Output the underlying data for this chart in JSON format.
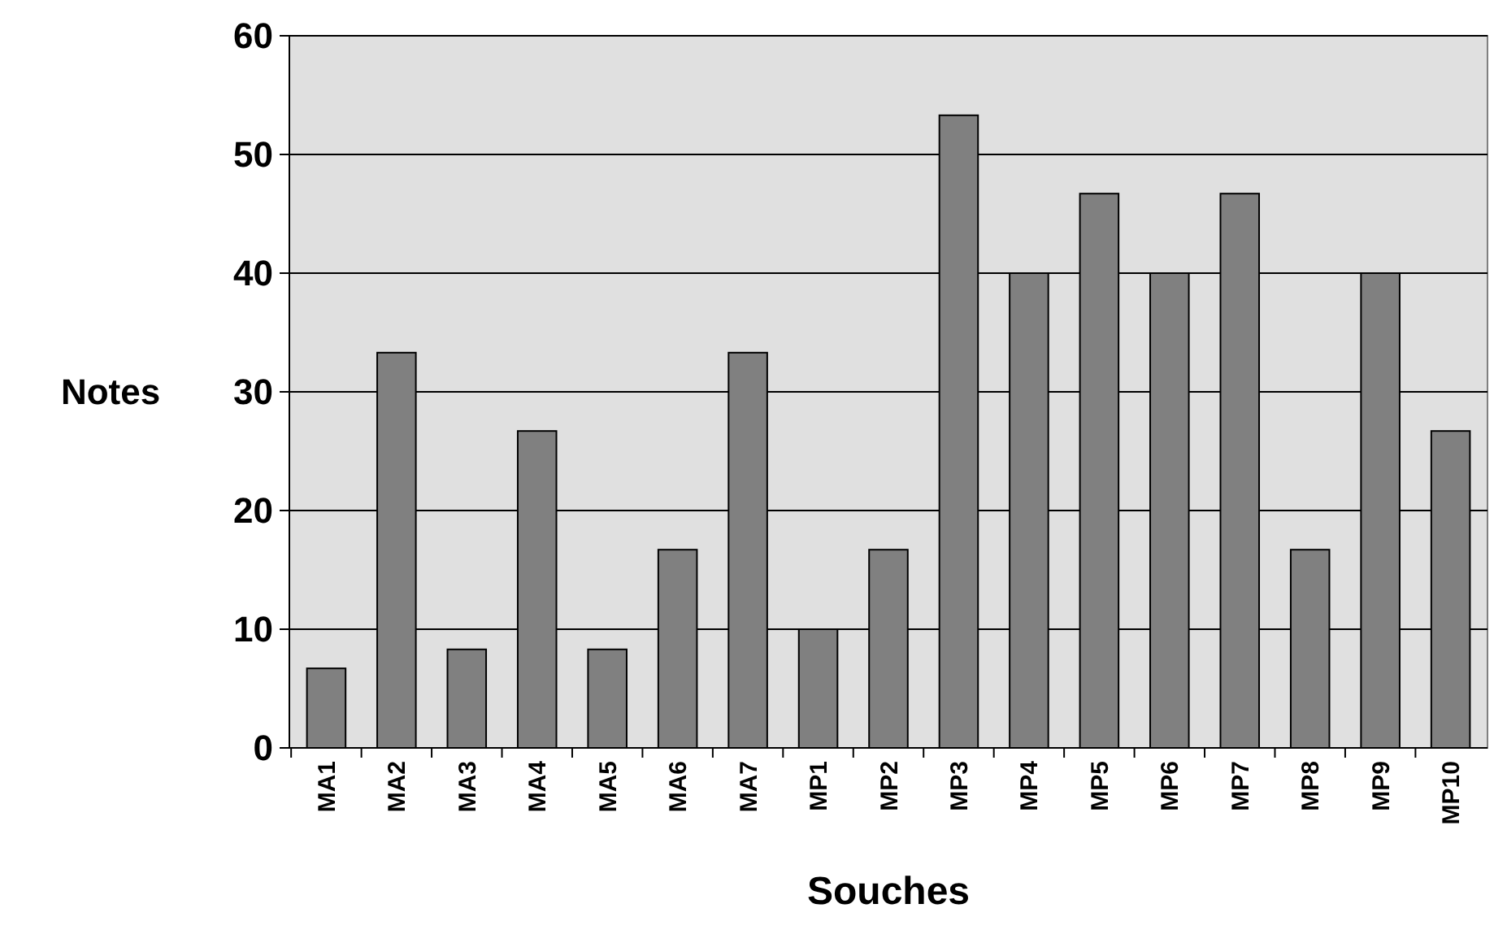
{
  "chart_data": {
    "type": "bar",
    "xlabel": "Souches",
    "ylabel": "Notes",
    "categories": [
      "MA1",
      "MA2",
      "MA3",
      "MA4",
      "MA5",
      "MA6",
      "MA7",
      "MP1",
      "MP2",
      "MP3",
      "MP4",
      "MP5",
      "MP6",
      "MP7",
      "MP8",
      "MP9",
      "MP10"
    ],
    "values": [
      6.7,
      33.3,
      8.3,
      26.7,
      8.3,
      16.7,
      33.3,
      10,
      16.7,
      53.3,
      40,
      46.7,
      40,
      46.7,
      16.7,
      40,
      26.7
    ],
    "color": "#808080",
    "ylim": [
      0,
      60
    ],
    "yticks": [
      0,
      10,
      20,
      30,
      40,
      50,
      60
    ],
    "grid": "y"
  }
}
